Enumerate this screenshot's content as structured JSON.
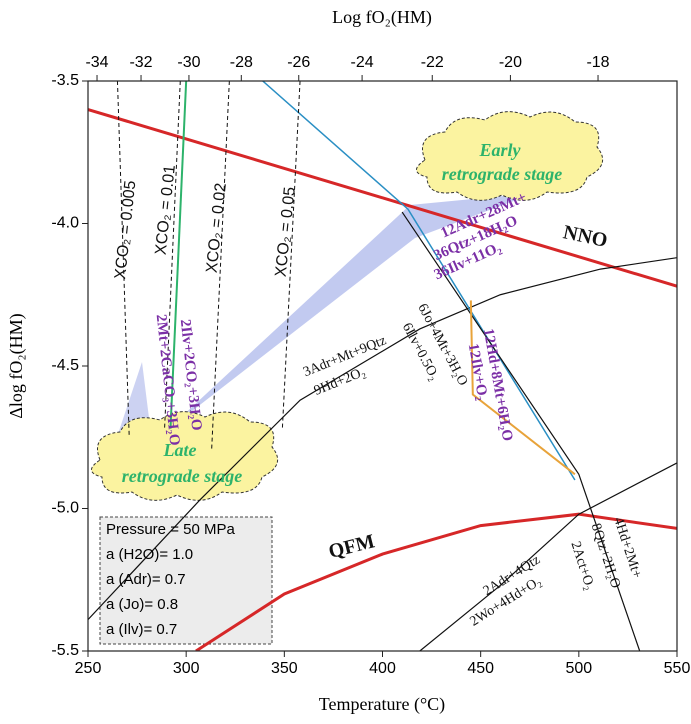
{
  "chart_data": {
    "type": "line",
    "xlabel": "Temperature (°C)",
    "ylabel": "Δlog fO₂(HM)",
    "x2label": "Log fO₂(HM)",
    "xlim": [
      250,
      550
    ],
    "xticks": [
      250,
      300,
      350,
      400,
      450,
      500,
      550
    ],
    "ylim": [
      -5.5,
      -3.5
    ],
    "yticks": [
      -5.5,
      {
        "value": -5,
        "label": "-5.0"
      },
      -4.5,
      {
        "value": -4,
        "label": "-4.0"
      },
      -3.5
    ],
    "x2ticks": [
      -34,
      -32,
      -30,
      -28,
      -26,
      -24,
      -22,
      -20,
      -18
    ],
    "lines": [
      {
        "color": "#d62728",
        "width": 3,
        "x": [
          250,
          400,
          550
        ],
        "values": [
          -3.6,
          -3.91,
          -4.22
        ]
      },
      {
        "color": "#d62728",
        "width": 3,
        "x": [
          305,
          350,
          400,
          450,
          500,
          550
        ],
        "values": [
          -5.5,
          -5.3,
          -5.16,
          -5.06,
          -5.02,
          -5.07
        ]
      },
      {
        "color": "#111111",
        "width": 1.2,
        "x": [
          250,
          307,
          358,
          419,
          460,
          511,
          550
        ],
        "values": [
          -5.39,
          -4.97,
          -4.62,
          -4.37,
          -4.25,
          -4.16,
          -4.12
        ]
      },
      {
        "color": "#2a8fc4",
        "width": 1.5,
        "x": [
          339,
          413,
          498
        ],
        "values": [
          -3.5,
          -3.95,
          -4.9
        ]
      },
      {
        "color": "#111111",
        "width": 1.2,
        "x": [
          410,
          500,
          531
        ],
        "values": [
          -3.96,
          -4.88,
          -5.5
        ]
      },
      {
        "color": "#111111",
        "width": 1.2,
        "x": [
          419,
          460,
          500,
          550
        ],
        "values": [
          -5.5,
          -5.27,
          -5.02,
          -4.84
        ]
      },
      {
        "color": "#2db36b",
        "width": 2,
        "x": [
          300,
          292
        ],
        "values": [
          -3.5,
          -4.72
        ]
      },
      {
        "color": "#e8a33a",
        "width": 2,
        "x": [
          445,
          446,
          498
        ],
        "values": [
          -4.27,
          -4.6,
          -4.88
        ]
      },
      {
        "color": "#111111",
        "width": 1,
        "dash": true,
        "x": [
          265,
          271
        ],
        "values": [
          -3.5,
          -4.75
        ]
      },
      {
        "color": "#111111",
        "width": 1,
        "dash": true,
        "x": [
          297,
          289
        ],
        "values": [
          -3.5,
          -4.72
        ]
      },
      {
        "color": "#111111",
        "width": 1,
        "dash": true,
        "x": [
          322,
          313
        ],
        "values": [
          -3.5,
          -4.79
        ]
      },
      {
        "color": "#111111",
        "width": 1,
        "dash": true,
        "x": [
          358,
          349
        ],
        "values": [
          -3.5,
          -4.72
        ]
      }
    ],
    "annotations": [
      {
        "text": "Early",
        "color": "#2db36b"
      },
      {
        "text": "retrograde stage",
        "color": "#2db36b"
      },
      {
        "text": "Late",
        "color": "#2db36b"
      },
      {
        "text": "retrograde stage",
        "color": "#2db36b"
      },
      {
        "text": "NNO",
        "color": "#111111"
      },
      {
        "text": "QFM",
        "color": "#111111"
      },
      {
        "text": "XCO₂ = 0.005",
        "color": "#111111"
      },
      {
        "text": "XCO₂ = 0.01",
        "color": "#111111"
      },
      {
        "text": "XCO₂ = 0.02",
        "color": "#111111"
      },
      {
        "text": "XCO₂ = 0.05",
        "color": "#111111"
      },
      {
        "text": "12Adr+28Mt+",
        "color": "#7b2fa6"
      },
      {
        "text": "36Qtz+18H₂O",
        "color": "#7b2fa6"
      },
      {
        "text": "36Ilv+11O₂",
        "color": "#7b2fa6"
      },
      {
        "text": "2Ilv+2CO₂+3H₂O",
        "color": "#7b2fa6"
      },
      {
        "text": "2Mt+2CaCO₃+3H₂O",
        "color": "#7b2fa6"
      },
      {
        "text": "12Hd+8Mt+6H₂O",
        "color": "#7b2fa6"
      },
      {
        "text": "12Ilv+O₂",
        "color": "#7b2fa6"
      },
      {
        "text": "3Adr+Mt+9Qtz",
        "color": "#111111"
      },
      {
        "text": "9Hd+2O₂",
        "color": "#111111"
      },
      {
        "text": "6Jo+4Mt+3H₂O",
        "color": "#111111"
      },
      {
        "text": "6Ilv+0.5O₂",
        "color": "#111111"
      },
      {
        "text": "2Adr+4Qtz",
        "color": "#111111"
      },
      {
        "text": "2Wo+4Hd+O₂",
        "color": "#111111"
      },
      {
        "text": "4Hd+2Mt+",
        "color": "#111111"
      },
      {
        "text": "8Qtz+2H₂O",
        "color": "#111111"
      },
      {
        "text": "2Act+O₂",
        "color": "#111111"
      }
    ],
    "conditions": [
      "Pressure = 50 MPa",
      "a (H2O)= 1.0",
      "a (Adr)= 0.7",
      "a (Jo)= 0.8",
      "a (Ilv)= 0.7"
    ]
  }
}
